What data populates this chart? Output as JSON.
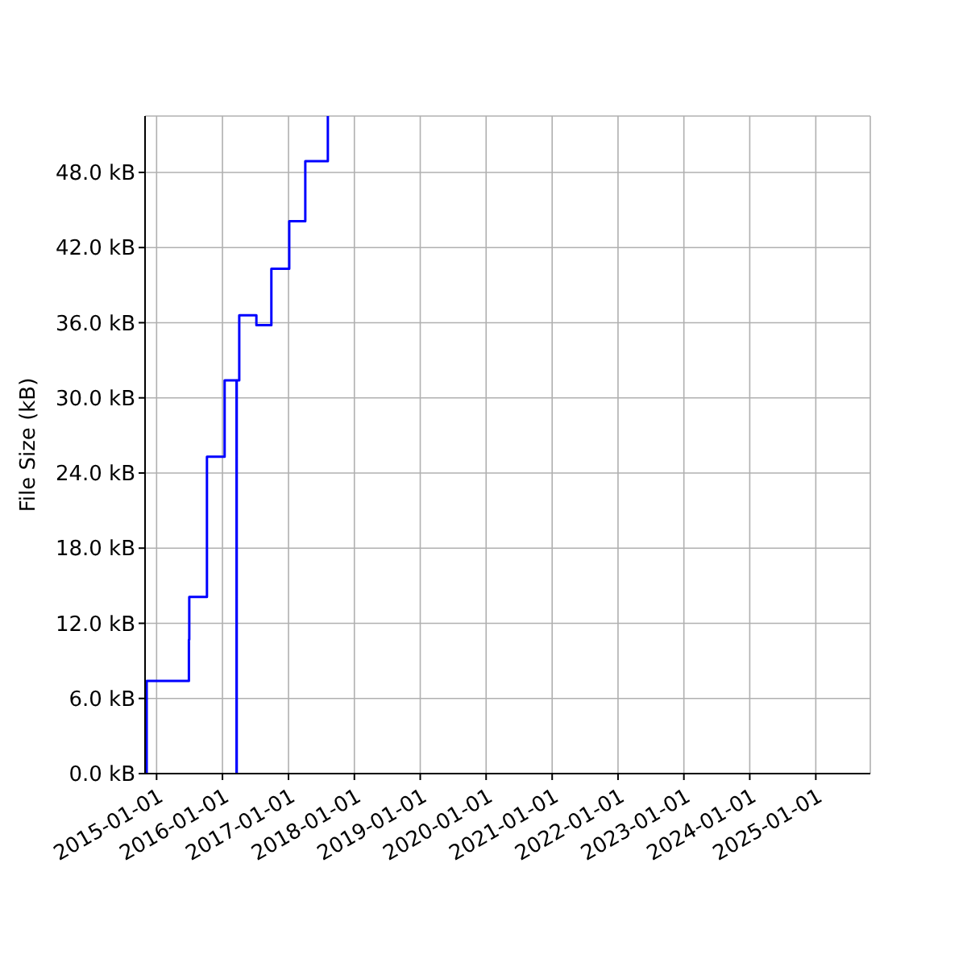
{
  "chart_data": {
    "type": "step",
    "ylabel": "File Size (kB)",
    "x": [
      "2014-11-06",
      "2014-11-07",
      "2015-06-29",
      "2015-07-01",
      "2015-10-07",
      "2016-01-13",
      "2016-03-19",
      "2016-03-20",
      "2016-04-03",
      "2016-07-07",
      "2016-09-28",
      "2017-01-05",
      "2017-04-04",
      "2017-08-07"
    ],
    "series": [
      {
        "color": "#0000ff",
        "values": [
          0,
          7.4,
          10.7,
          14.1,
          25.3,
          31.4,
          0,
          31.4,
          36.6,
          35.8,
          40.3,
          44.1,
          48.9,
          52.5
        ]
      }
    ],
    "xlim": [
      "2014-10-29",
      "2025-10-30"
    ],
    "xticks": [
      "2015-01-01",
      "2016-01-01",
      "2017-01-01",
      "2018-01-01",
      "2019-01-01",
      "2020-01-01",
      "2021-01-01",
      "2022-01-01",
      "2023-01-01",
      "2024-01-01",
      "2025-01-01"
    ],
    "ylim": [
      0,
      52.5
    ],
    "yticks": [
      {
        "value": 0,
        "label": "0.0 kB"
      },
      {
        "value": 6,
        "label": "6.0 kB"
      },
      {
        "value": 12,
        "label": "12.0 kB"
      },
      {
        "value": 18,
        "label": "18.0 kB"
      },
      {
        "value": 24,
        "label": "24.0 kB"
      },
      {
        "value": 30,
        "label": "30.0 kB"
      },
      {
        "value": 36,
        "label": "36.0 kB"
      },
      {
        "value": 42,
        "label": "42.0 kB"
      },
      {
        "value": 48,
        "label": "48.0 kB"
      }
    ],
    "grid": true
  }
}
